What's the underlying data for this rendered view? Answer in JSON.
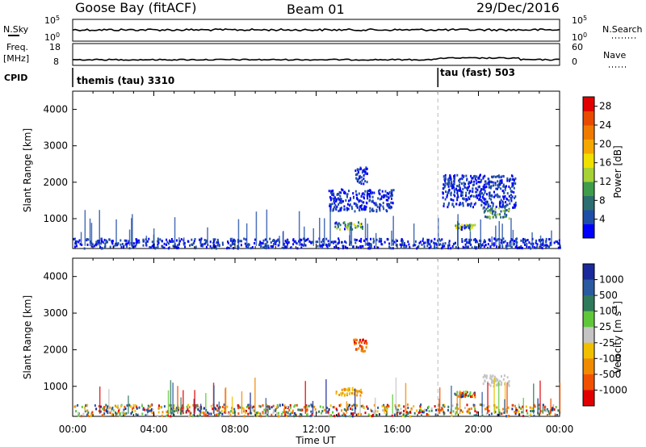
{
  "header": {
    "station": "Goose Bay (fitACF)",
    "beam": "Beam 01",
    "date": "29/Dec/2016"
  },
  "status_panels": {
    "nsky": {
      "left_label": "N.Sky",
      "left_ticks": [
        "10^5",
        "10^0"
      ],
      "right_label": "N.Search",
      "right_ticks": [
        "10^5",
        "10^0"
      ]
    },
    "freq": {
      "left_label_1": "Freq.",
      "left_label_2": "[MHz]",
      "left_ticks": [
        "18",
        "8"
      ],
      "right_label": "Nave",
      "right_ticks": [
        "60",
        "0"
      ]
    },
    "cpid": {
      "label": "CPID",
      "programs": [
        "themis (tau) 3310",
        "tau (fast) 503"
      ],
      "switch_time_hours": 18.0
    }
  },
  "chart_data": [
    {
      "type": "heatmap",
      "panel": "power",
      "ylabel": "Slant Range [km]",
      "xlabel": "",
      "ylim": [
        180,
        4500
      ],
      "yticks": [
        "1000",
        "2000",
        "3000",
        "4000"
      ],
      "xlim_hours": [
        0,
        24
      ],
      "colorbar": {
        "label": "Power [dB]",
        "ticks": [
          "4",
          "8",
          "12",
          "16",
          "20",
          "24",
          "28"
        ],
        "range": [
          0,
          30
        ],
        "colors": [
          "#0000ff",
          "#1f4ea6",
          "#2d6e70",
          "#3f9c4a",
          "#a6d236",
          "#f0e000",
          "#f5a800",
          "#f07a00",
          "#e84a00",
          "#e00000"
        ]
      },
      "features": [
        {
          "time_range": [
            12.9,
            14.3
          ],
          "range_km": [
            700,
            900
          ],
          "level": "mixed"
        },
        {
          "time_range": [
            13.8,
            14.5
          ],
          "range_km": [
            1950,
            2400
          ],
          "level": "low"
        },
        {
          "time_range": [
            12.6,
            15.8
          ],
          "range_km": [
            1200,
            1800
          ],
          "level": "low"
        },
        {
          "time_range": [
            18.8,
            19.8
          ],
          "range_km": [
            700,
            850
          ],
          "level": "mixed"
        },
        {
          "time_range": [
            20.2,
            21.5
          ],
          "range_km": [
            1000,
            1300
          ],
          "level": "medium"
        },
        {
          "time_range": [
            18.2,
            21.8
          ],
          "range_km": [
            1300,
            2200
          ],
          "level": "low"
        },
        {
          "time_range": [
            0.0,
            24.0
          ],
          "range_km": [
            180,
            450
          ],
          "level": "low"
        }
      ]
    },
    {
      "type": "heatmap",
      "panel": "velocity",
      "ylabel": "Slant Range [km]",
      "xlabel": "Time UT",
      "ylim": [
        180,
        4500
      ],
      "yticks": [
        "1000",
        "2000",
        "3000",
        "4000"
      ],
      "xticks": [
        "00:00",
        "04:00",
        "08:00",
        "12:00",
        "16:00",
        "20:00",
        "00:00"
      ],
      "xlim_hours": [
        0,
        24
      ],
      "colorbar": {
        "label": "Velocity [m s^-1]",
        "ticks": [
          "1000",
          "500",
          "100",
          "25",
          "-25",
          "-100",
          "-500",
          "-1000"
        ],
        "colors": [
          "#1a2a9a",
          "#2a5aa0",
          "#2f7a5a",
          "#5fc83a",
          "#c4c4c4",
          "#f0c000",
          "#f08a00",
          "#f05000",
          "#e00000"
        ]
      },
      "features": [
        {
          "time_range": [
            12.9,
            14.3
          ],
          "range_km": [
            750,
            950
          ],
          "level": "toward"
        },
        {
          "time_range": [
            13.8,
            14.5
          ],
          "range_km": [
            1950,
            2300
          ],
          "level": "away"
        },
        {
          "time_range": [
            18.8,
            19.8
          ],
          "range_km": [
            700,
            850
          ],
          "level": "mixed"
        },
        {
          "time_range": [
            20.2,
            21.5
          ],
          "range_km": [
            1000,
            1300
          ],
          "level": "ground"
        },
        {
          "time_range": [
            0.0,
            24.0
          ],
          "range_km": [
            180,
            500
          ],
          "level": "mixed"
        }
      ]
    }
  ]
}
